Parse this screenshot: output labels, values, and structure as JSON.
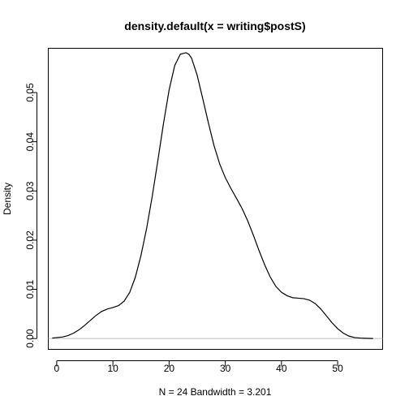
{
  "chart_data": {
    "type": "line",
    "title": "density.default(x = writing$postS)",
    "xlabel": "N = 24   Bandwidth = 3.201",
    "ylabel": "Density",
    "xlim": [
      -1.5,
      58.0
    ],
    "ylim": [
      -0.0022,
      0.059
    ],
    "x_ticks": [
      0,
      10,
      20,
      30,
      40,
      50
    ],
    "x_tick_labels": [
      "0",
      "10",
      "20",
      "30",
      "40",
      "50"
    ],
    "y_ticks": [
      0.0,
      0.01,
      0.02,
      0.03,
      0.04,
      0.05
    ],
    "y_tick_labels": [
      "0.00",
      "0.01",
      "0.02",
      "0.03",
      "0.04",
      "0.05"
    ],
    "grid": false,
    "zero_line": true,
    "colors": {
      "line": "#000000",
      "zero_line": "#bebebe",
      "box": "#000000",
      "background": "#ffffff"
    },
    "series": [
      {
        "x": [
          -0.8,
          1,
          2,
          3,
          4,
          5,
          6,
          7,
          8,
          9,
          10,
          11,
          12,
          13,
          14,
          15,
          16,
          17,
          18,
          19,
          20,
          21,
          22,
          23,
          23.5,
          24,
          25,
          26,
          27,
          28,
          29,
          30,
          31,
          32,
          33,
          34,
          35,
          36,
          37,
          38,
          39,
          40,
          41,
          42,
          43,
          44,
          45,
          46,
          47,
          48,
          49,
          50,
          51,
          52,
          53,
          54,
          55,
          56.3
        ],
        "y": [
          0.0001,
          0.0003,
          0.0006,
          0.0011,
          0.0018,
          0.0027,
          0.0037,
          0.0047,
          0.0055,
          0.006,
          0.0063,
          0.0067,
          0.0076,
          0.0094,
          0.0125,
          0.0169,
          0.0224,
          0.0289,
          0.0362,
          0.0437,
          0.0505,
          0.0555,
          0.0578,
          0.0581,
          0.0578,
          0.057,
          0.0535,
          0.0487,
          0.0438,
          0.0392,
          0.0355,
          0.0327,
          0.0305,
          0.0285,
          0.0264,
          0.0239,
          0.021,
          0.0179,
          0.015,
          0.0125,
          0.0106,
          0.0094,
          0.0087,
          0.0083,
          0.0082,
          0.0081,
          0.0078,
          0.0071,
          0.006,
          0.0046,
          0.0032,
          0.002,
          0.0011,
          0.0005,
          0.0002,
          0.0001,
          5e-05,
          0.0
        ]
      }
    ]
  }
}
